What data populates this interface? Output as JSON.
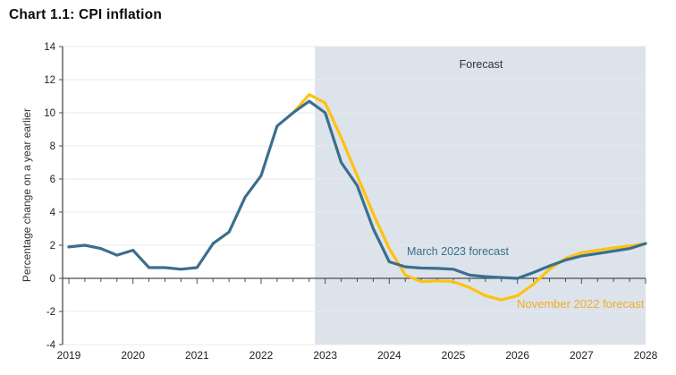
{
  "page": {
    "title": "Chart 1.1: CPI inflation"
  },
  "chart_data": {
    "type": "line",
    "title": "Chart 1.1: CPI inflation",
    "ylabel": "Percentage change on a year earlier",
    "ylim": [
      -4,
      14
    ],
    "ytick_step": 2,
    "x_tick_years": [
      2019,
      2020,
      2021,
      2022,
      2023,
      2024,
      2025,
      2026,
      2027,
      2028
    ],
    "x_minor_tick_step_years": 0.25,
    "grid": "horizontal light gridlines at even values",
    "axis_color": "#4d4d4d",
    "forecast_region": {
      "label": "Forecast",
      "x_start": 2022.84,
      "x_end": 2028.1,
      "fill": "#dce3eb"
    },
    "series": [
      {
        "name": "November 2022 forecast",
        "color": "#FFC20E",
        "label_color": "#F2AC29",
        "x_start": 2022.5,
        "x_step": 0.25,
        "values": [
          10.0,
          11.1,
          10.6,
          8.5,
          6.2,
          3.9,
          1.8,
          0.2,
          -0.2,
          -0.15,
          -0.2,
          -0.55,
          -1.05,
          -1.3,
          -1.05,
          -0.35,
          0.55,
          1.2,
          1.55,
          1.7,
          1.85,
          1.95,
          2.1
        ]
      },
      {
        "name": "March 2023 forecast",
        "color": "#3B6E8F",
        "label_color": "#3B6E8F",
        "x_start": 2019.0,
        "x_step": 0.25,
        "values": [
          1.9,
          2.0,
          1.8,
          1.4,
          1.7,
          0.65,
          0.65,
          0.55,
          0.65,
          2.1,
          2.8,
          4.9,
          6.2,
          9.2,
          10.0,
          10.7,
          10.0,
          7.0,
          5.6,
          3.0,
          1.0,
          0.7,
          0.62,
          0.6,
          0.55,
          0.2,
          0.1,
          0.05,
          0.0,
          0.35,
          0.75,
          1.1,
          1.35,
          1.5,
          1.65,
          1.8,
          2.1
        ]
      }
    ]
  }
}
